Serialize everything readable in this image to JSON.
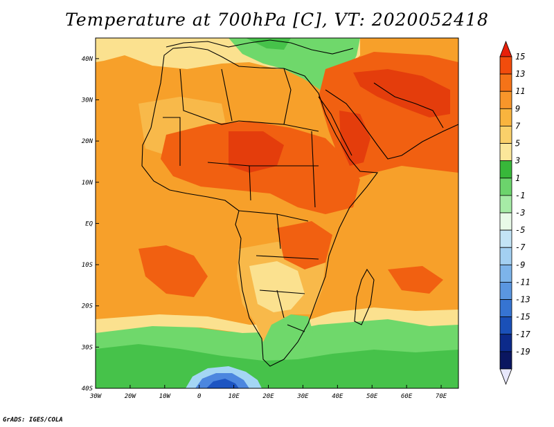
{
  "title": "Temperature at 700hPa [C], VT: 2020052418",
  "footer": "GrADS: IGES/COLA",
  "axes": {
    "lon_ticks": [
      "30W",
      "20W",
      "10W",
      "0",
      "10E",
      "20E",
      "30E",
      "40E",
      "50E",
      "60E",
      "70E"
    ],
    "lat_ticks": [
      "40N",
      "30N",
      "20N",
      "10N",
      "EQ",
      "10S",
      "20S",
      "30S",
      "40S"
    ],
    "lon_range": [
      -30,
      75
    ],
    "lat_range": [
      -40,
      45
    ]
  },
  "legend": {
    "labels": [
      "15",
      "13",
      "11",
      "9",
      "7",
      "5",
      "3",
      "1",
      "-1",
      "-3",
      "-5",
      "-7",
      "-9",
      "-11",
      "-13",
      "-15",
      "-17",
      "-19"
    ],
    "colors": [
      "#e8200a",
      "#f24c0c",
      "#f57318",
      "#f8962a",
      "#f9b43e",
      "#fad06a",
      "#fbe79a",
      "#38b83a",
      "#6cd46c",
      "#a6eba6",
      "#e8fae8",
      "#c3e4f6",
      "#a3d0f2",
      "#7db4ea",
      "#5a96e0",
      "#3674d2",
      "#1a50b8",
      "#0c2a8a",
      "#0a1660",
      "#e7e7fb"
    ],
    "note": "top triangle = warmest, bottom triangle = coldest"
  },
  "field_colors": {
    "ocean_base": "#f7a02a",
    "hot": "#f16011",
    "very_hot": "#e43d0c",
    "warm": "#f8b94a",
    "mild": "#fbe18f",
    "green": "#6fd86b",
    "green_dark": "#46c24a",
    "light_blue": "#a4d6f4",
    "blue": "#4c87df",
    "deep_blue": "#1d55c2"
  }
}
